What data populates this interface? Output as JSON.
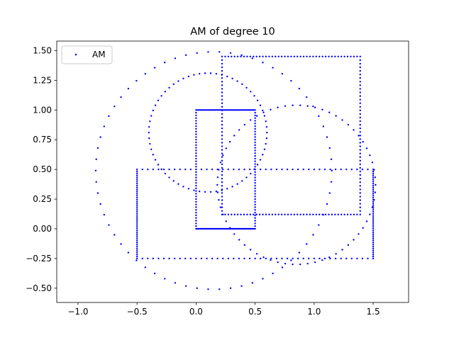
{
  "chart_data": {
    "type": "scatter",
    "title": "AM of degree 10",
    "xlabel": "",
    "ylabel": "",
    "xlim": [
      -1.18,
      1.8
    ],
    "ylim": [
      -0.62,
      1.58
    ],
    "grid": false,
    "legend_position": "upper-left",
    "x_ticks": [
      -1.0,
      -0.5,
      0.0,
      0.5,
      1.0,
      1.5
    ],
    "x_tick_labels": [
      "−1.0",
      "−0.5",
      "0.0",
      "0.5",
      "1.0",
      "1.5"
    ],
    "y_ticks": [
      -0.5,
      -0.25,
      0.0,
      0.25,
      0.5,
      0.75,
      1.0,
      1.25,
      1.5
    ],
    "y_tick_labels": [
      "−0.50",
      "−0.25",
      "0.00",
      "0.25",
      "0.50",
      "0.75",
      "1.00",
      "1.25",
      "1.50"
    ],
    "marker_color": "#0000ff",
    "series": [
      {
        "name": "AM",
        "shapes": [
          {
            "kind": "circle",
            "cx": 0.15,
            "cy": 0.49,
            "r": 1.0,
            "points": 66
          },
          {
            "kind": "circle",
            "cx": 0.1,
            "cy": 0.81,
            "r": 0.5,
            "points": 66
          },
          {
            "kind": "circle",
            "cx": 0.85,
            "cy": 0.37,
            "r": 0.67,
            "points": 66
          },
          {
            "kind": "rect",
            "x0": 0.0,
            "y0": 0.0,
            "x1": 0.5,
            "y1": 1.0,
            "points_per_side": 44
          },
          {
            "kind": "rect",
            "x0": -0.5,
            "y0": -0.25,
            "x1": 1.5,
            "y1": 0.5,
            "points_per_side": 44
          },
          {
            "kind": "rect",
            "x0": 0.22,
            "y0": 0.12,
            "x1": 1.39,
            "y1": 1.45,
            "points_per_side": 44
          }
        ]
      }
    ]
  }
}
